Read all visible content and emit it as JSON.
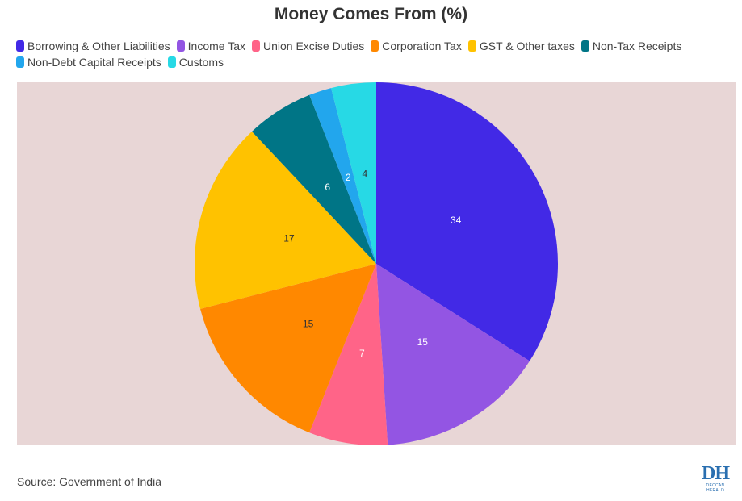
{
  "chart_data": {
    "type": "pie",
    "title": "Money Comes From (%)",
    "legend_position": "top-left",
    "categories": [
      "Borrowing & Other Liabilities",
      "Income Tax",
      "Union Excise Duties",
      "Corporation Tax",
      "GST & Other taxes",
      "Non-Tax Receipts",
      "Non-Debt Capital Receipts",
      "Customs"
    ],
    "values": [
      34,
      15,
      7,
      15,
      17,
      6,
      2,
      4
    ],
    "colors": [
      "#4229e6",
      "#9355e3",
      "#ff6488",
      "#ff8800",
      "#ffc200",
      "#007586",
      "#22a6ed",
      "#27d9e5"
    ],
    "label_colors": [
      "#ffffff",
      "#ffffff",
      "#ffffff",
      "#333333",
      "#333333",
      "#ffffff",
      "#ffffff",
      "#333333"
    ]
  },
  "footer": {
    "source": "Source: Government of India",
    "logo_mark": "DH",
    "logo_text": "DECCAN HERALD"
  }
}
